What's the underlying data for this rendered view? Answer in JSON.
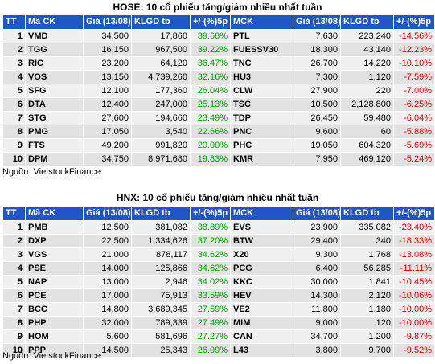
{
  "hose": {
    "title": "HOSE: 10 cổ phiếu tăng/giảm nhiều nhất tuần",
    "headers": [
      "TT",
      "Mã CK",
      "Giá (13/08)",
      "KLGD tb",
      "+/-(%)5p",
      "MCK",
      "Giá (13/08)",
      "KLGD tb",
      "+/-(%)5p"
    ],
    "rows": [
      [
        "1",
        "VMD",
        "34,500",
        "17,860",
        "39.68%",
        "PTL",
        "7,630",
        "223,240",
        "-14.56%"
      ],
      [
        "2",
        "TGG",
        "16,150",
        "967,500",
        "39.22%",
        "FUESSV30",
        "18,300",
        "43,140",
        "-12.23%"
      ],
      [
        "3",
        "RIC",
        "23,200",
        "64,120",
        "36.47%",
        "TNC",
        "26,700",
        "14,220",
        "-10.10%"
      ],
      [
        "4",
        "VOS",
        "13,150",
        "4,739,260",
        "32.16%",
        "HU3",
        "7,300",
        "1,120",
        "-7.59%"
      ],
      [
        "5",
        "SFG",
        "12,100",
        "177,360",
        "26.04%",
        "CLW",
        "27,900",
        "220",
        "-7.00%"
      ],
      [
        "6",
        "DTA",
        "12,400",
        "247,000",
        "25.13%",
        "TSC",
        "10,500",
        "2,128,800",
        "-6.25%"
      ],
      [
        "7",
        "STG",
        "27,600",
        "194,660",
        "23.49%",
        "TDP",
        "26,450",
        "59,480",
        "-6.04%"
      ],
      [
        "8",
        "PMG",
        "17,050",
        "3,540",
        "22.66%",
        "PNC",
        "9,600",
        "60",
        "-5.88%"
      ],
      [
        "9",
        "FTS",
        "49,200",
        "991,820",
        "20.00%",
        "PHC",
        "19,050",
        "604,320",
        "-5.69%"
      ],
      [
        "10",
        "DPM",
        "34,750",
        "8,971,680",
        "19.83%",
        "KMR",
        "7,950",
        "469,120",
        "-5.24%"
      ]
    ],
    "source": "Nguồn: VietstockFinance"
  },
  "hnx": {
    "title": "HNX: 10 cổ phiếu tăng/giảm nhiều nhất tuần",
    "headers": [
      "TT",
      "Mã CK",
      "Giá (13/08)",
      "KLGD tb",
      "+/-(%)5p",
      "MCK",
      "Giá (13/08)",
      "KLGD tb",
      "+/-(%)5p"
    ],
    "rows": [
      [
        "1",
        "PMB",
        "12,500",
        "381,082",
        "38.89%",
        "EVS",
        "23,900",
        "335,082",
        "-23.40%"
      ],
      [
        "2",
        "DXP",
        "22,500",
        "1,334,626",
        "37.20%",
        "BTW",
        "29,400",
        "340",
        "-18.33%"
      ],
      [
        "3",
        "VGS",
        "21,000",
        "878,117",
        "34.62%",
        "X20",
        "9,300",
        "1,768",
        "-13.08%"
      ],
      [
        "4",
        "PSE",
        "14,000",
        "125,866",
        "34.62%",
        "PCG",
        "6,400",
        "56,285",
        "-11.11%"
      ],
      [
        "5",
        "NAP",
        "13,000",
        "2,946",
        "34.02%",
        "KKC",
        "30,000",
        "1,841",
        "-10.45%"
      ],
      [
        "6",
        "PCE",
        "17,000",
        "75,913",
        "33.59%",
        "HEV",
        "14,300",
        "2,120",
        "-10.06%"
      ],
      [
        "7",
        "BCC",
        "14,800",
        "3,689,345",
        "27.59%",
        "VE2",
        "11,800",
        "1,180",
        "-10.00%"
      ],
      [
        "8",
        "PHP",
        "32,000",
        "789,339",
        "27.49%",
        "MIM",
        "9,000",
        "120",
        "-10.00%"
      ],
      [
        "9",
        "HOM",
        "5,600",
        "581,696",
        "27.27%",
        "CAN",
        "34,700",
        "1,200",
        "-9.87%"
      ],
      [
        "10",
        "PPP",
        "14,500",
        "25,343",
        "26.09%",
        "L43",
        "3,800",
        "9,700",
        "-9.52%"
      ]
    ],
    "source": "Nguồn: VietstockFinance"
  },
  "colors": {
    "header_bg": "#1f55c4",
    "gain": "#00a000",
    "loss": "#e00000"
  }
}
